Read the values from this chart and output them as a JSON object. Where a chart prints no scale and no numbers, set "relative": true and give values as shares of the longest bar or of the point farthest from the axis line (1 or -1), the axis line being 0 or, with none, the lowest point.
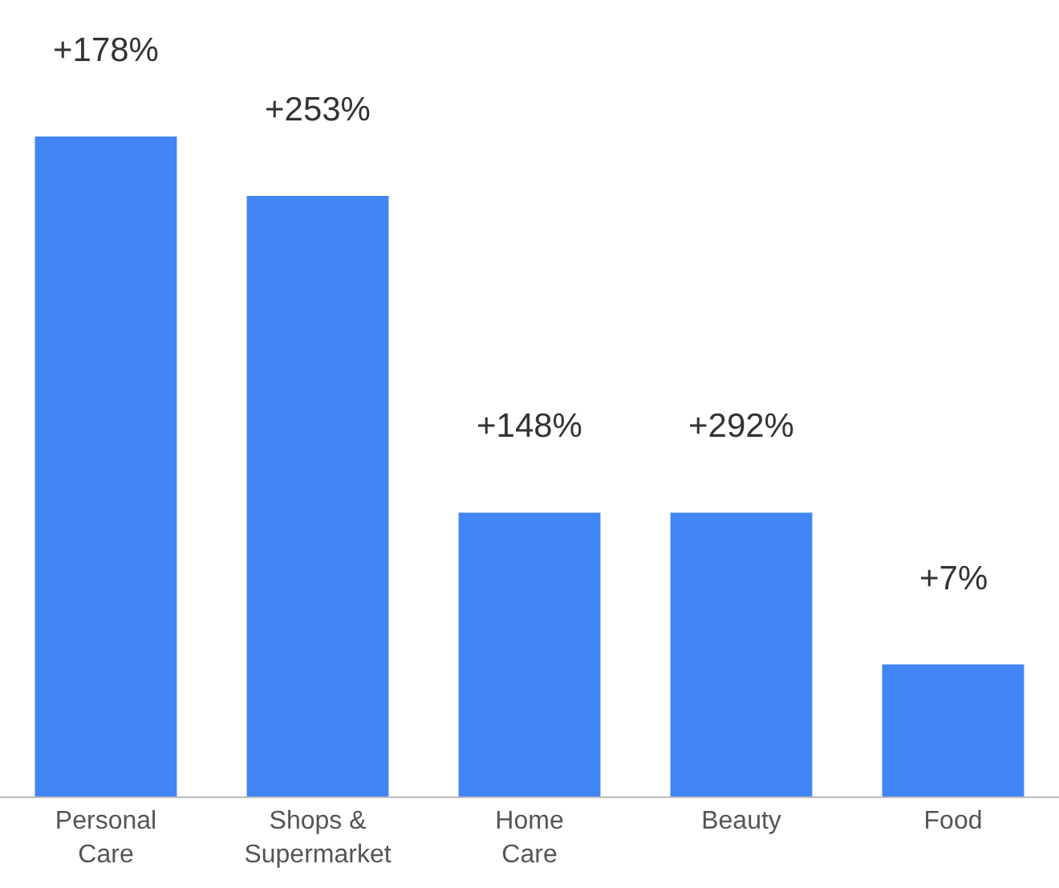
{
  "chart_data": {
    "type": "bar",
    "relative": true,
    "categories": [
      "Personal Care",
      "Shops & Supermarket",
      "Home Care",
      "Beauty",
      "Food"
    ],
    "values": [
      1,
      0.91,
      0.43,
      0.43,
      0.2
    ],
    "annotations": [
      "+178%",
      "+253%",
      "+148%",
      "+292%",
      "+7%"
    ],
    "color": "#4285f4",
    "tick_labels": "x",
    "grid": false,
    "legend": false
  }
}
